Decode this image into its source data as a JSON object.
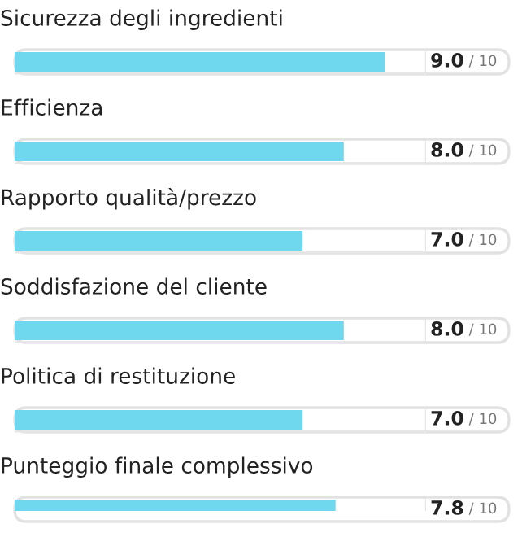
{
  "chart_data": {
    "type": "bar",
    "orientation": "horizontal",
    "categories": [
      "Sicurezza degli ingredienti",
      "Efficienza",
      "Rapporto qualità/prezzo",
      "Soddisfazione del cliente",
      "Politica di restituzione",
      "Punteggio finale complessivo"
    ],
    "values": [
      9.0,
      8.0,
      7.0,
      8.0,
      7.0,
      7.8
    ],
    "value_labels": [
      "9.0",
      "8.0",
      "7.0",
      "8.0",
      "7.0",
      "7.8"
    ],
    "annotations": [
      "/ 10",
      "/ 10",
      "/ 10",
      "/ 10",
      "/ 10",
      "/ 10"
    ],
    "color": "#6fd8ee",
    "xlim": [
      0,
      10
    ],
    "tick_labels": false
  }
}
